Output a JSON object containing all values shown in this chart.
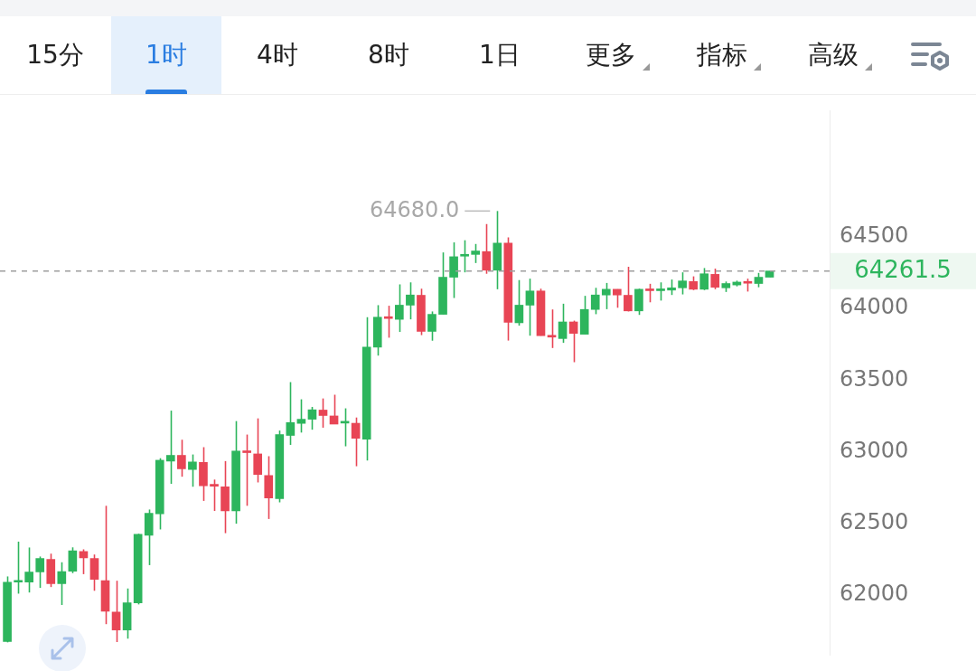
{
  "chart_data": {
    "type": "candlestick",
    "categories": [
      null,
      null,
      null,
      null,
      null,
      null,
      null,
      null,
      null,
      null,
      null,
      null,
      null,
      null,
      null,
      null,
      null,
      null,
      null,
      null,
      null,
      null,
      null,
      null,
      null,
      null,
      null,
      null,
      null,
      null,
      null,
      null,
      null,
      null,
      null,
      null,
      null,
      null,
      null,
      null,
      null,
      null,
      null,
      null,
      null,
      null,
      null,
      null,
      null,
      null,
      null,
      null,
      null,
      null,
      null,
      null,
      null,
      null,
      null,
      null,
      null,
      null,
      null,
      null,
      null,
      null,
      null,
      null,
      null,
      null,
      null
    ],
    "ohlc": [
      [
        61676,
        62130,
        61670,
        62090
      ],
      [
        62090,
        62373,
        62010,
        62095
      ],
      [
        62090,
        62332,
        62018,
        62161
      ],
      [
        62161,
        62269,
        62050,
        62255
      ],
      [
        62249,
        62289,
        62056,
        62080
      ],
      [
        62080,
        62229,
        61931,
        62164
      ],
      [
        62166,
        62333,
        62153,
        62309
      ],
      [
        62304,
        62319,
        62146,
        62259
      ],
      [
        62255,
        62283,
        62030,
        62110
      ],
      [
        62100,
        62623,
        61797,
        61887
      ],
      [
        61881,
        62100,
        61672,
        61756
      ],
      [
        61756,
        62046,
        61696,
        61946
      ],
      [
        61946,
        62428,
        61935,
        62424
      ],
      [
        62418,
        62597,
        62209,
        62571
      ],
      [
        62567,
        62955,
        62458,
        62941
      ],
      [
        62935,
        63287,
        62776,
        62975
      ],
      [
        62975,
        63084,
        62826,
        62881
      ],
      [
        62876,
        62981,
        62756,
        62929
      ],
      [
        62925,
        63032,
        62657,
        62762
      ],
      [
        62765,
        62806,
        62587,
        62760
      ],
      [
        62756,
        62935,
        62432,
        62587
      ],
      [
        62587,
        63214,
        62498,
        63005
      ],
      [
        63000,
        63120,
        62623,
        62994
      ],
      [
        62985,
        63233,
        62786,
        62841
      ],
      [
        62835,
        62969,
        62531,
        62677
      ],
      [
        62673,
        63148,
        62647,
        63120
      ],
      [
        63114,
        63486,
        63048,
        63204
      ],
      [
        63198,
        63366,
        63134,
        63227
      ],
      [
        63227,
        63313,
        63154,
        63293
      ],
      [
        63291,
        63372,
        63168,
        63253
      ],
      [
        63250,
        63398,
        63193,
        63193
      ],
      [
        63200,
        63303,
        63038,
        63204
      ],
      [
        63199,
        63239,
        62899,
        63094
      ],
      [
        63088,
        63939,
        62939,
        63730
      ],
      [
        63730,
        64023,
        63671,
        63939
      ],
      [
        63936,
        64019,
        63796,
        63930
      ],
      [
        63924,
        64168,
        63836,
        64023
      ],
      [
        64023,
        64182,
        63924,
        64094
      ],
      [
        64092,
        64138,
        63814,
        63840
      ],
      [
        63840,
        63979,
        63775,
        63959
      ],
      [
        63959,
        64391,
        63959,
        64218
      ],
      [
        64218,
        64461,
        64073,
        64361
      ],
      [
        64365,
        64476,
        64252,
        64377
      ],
      [
        64377,
        64450,
        64317,
        64401
      ],
      [
        64397,
        64589,
        64242,
        64267
      ],
      [
        64267,
        64680,
        64134,
        64456
      ],
      [
        64456,
        64496,
        63776,
        63903
      ],
      [
        63900,
        64198,
        63880,
        64023
      ],
      [
        64023,
        64208,
        63810,
        64122
      ],
      [
        64122,
        64138,
        63810,
        63810
      ],
      [
        63805,
        63993,
        63724,
        63800
      ],
      [
        63790,
        64033,
        63760,
        63906
      ],
      [
        63906,
        63915,
        63625,
        63826
      ],
      [
        63820,
        64088,
        63820,
        63993
      ],
      [
        63993,
        64144,
        63960,
        64094
      ],
      [
        64094,
        64178,
        63995,
        64134
      ],
      [
        64134,
        64134,
        64005,
        64094
      ],
      [
        64092,
        64291,
        63979,
        63983
      ],
      [
        63983,
        64138,
        63955,
        64134
      ],
      [
        64130,
        64172,
        64043,
        64124
      ],
      [
        64124,
        64182,
        64055,
        64130
      ],
      [
        64128,
        64202,
        64094,
        64144
      ],
      [
        64144,
        64252,
        64098,
        64192
      ],
      [
        64188,
        64224,
        64128,
        64134
      ],
      [
        64134,
        64282,
        64128,
        64242
      ],
      [
        64238,
        64278,
        64134,
        64148
      ],
      [
        64144,
        64188,
        64115,
        64174
      ],
      [
        64164,
        64194,
        64154,
        64184
      ],
      [
        64180,
        64208,
        64118,
        64176
      ],
      [
        64174,
        64248,
        64148,
        64218
      ],
      [
        64218,
        64262,
        64218,
        64261.5
      ]
    ],
    "ylim": [
      61580,
      65380
    ],
    "yticks": [
      62000,
      62500,
      63000,
      63500,
      64000,
      64500
    ],
    "tick_labels": "y",
    "grid": false,
    "legend": false,
    "ref_lines": [
      {
        "axis": "y",
        "value": 64261.5,
        "label": "64261.5",
        "color": "#9e9e9e",
        "line_style": "dashed"
      }
    ],
    "annotations": [
      "15分",
      "1时",
      "4时",
      "8时",
      "1日",
      "更多",
      "指标",
      "高级",
      "64680.0"
    ]
  }
}
